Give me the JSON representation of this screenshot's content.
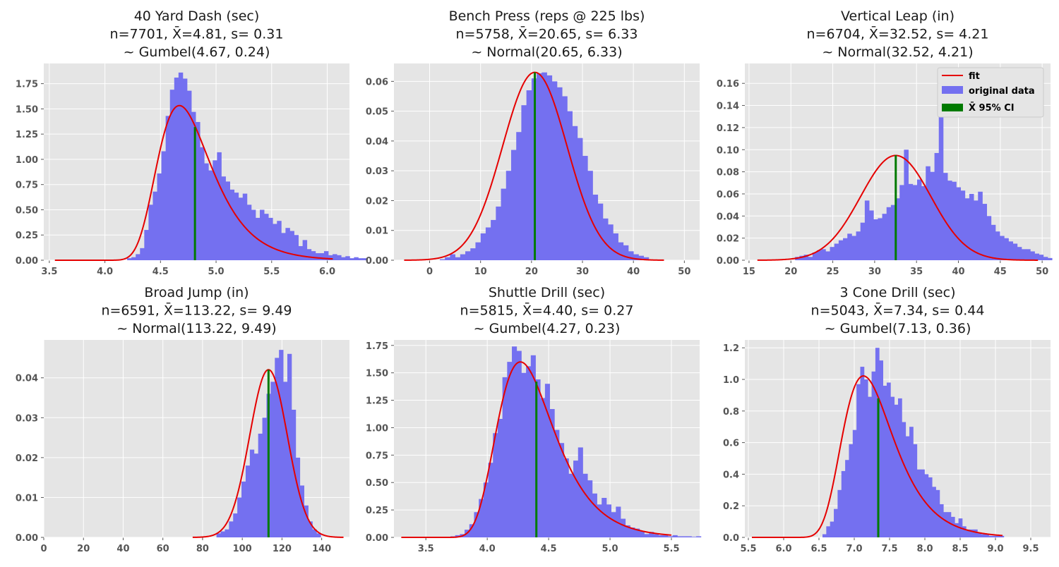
{
  "chart_data": [
    {
      "type": "bar",
      "title": [
        "40 Yard Dash (sec)",
        "n=7701, X̄=4.81, s= 0.31",
        "~ Gumbel(4.67, 0.24)"
      ],
      "xlim": [
        3.45,
        6.2
      ],
      "ylim": [
        0,
        1.95
      ],
      "xticks": [
        3.5,
        4.0,
        4.5,
        5.0,
        5.5,
        6.0
      ],
      "xtick_decimals": 1,
      "yticks": [
        0,
        0.25,
        0.5,
        0.75,
        1.0,
        1.25,
        1.5,
        1.75
      ],
      "ytick_decimals": 2,
      "fit": {
        "dist": "gumbel",
        "mu": 4.67,
        "beta": 0.24,
        "x": [
          3.55,
          6.05
        ]
      },
      "ci": {
        "mean": 4.81,
        "height": 1.32
      },
      "bins": {
        "start": 4.2,
        "width": 0.0385,
        "values": [
          0.02,
          0.03,
          0.06,
          0.12,
          0.3,
          0.55,
          0.68,
          0.86,
          1.08,
          1.43,
          1.69,
          1.81,
          1.86,
          1.8,
          1.68,
          1.47,
          1.37,
          1.12,
          0.96,
          0.89,
          0.99,
          1.07,
          0.83,
          0.78,
          0.7,
          0.67,
          0.62,
          0.66,
          0.55,
          0.5,
          0.42,
          0.5,
          0.46,
          0.42,
          0.36,
          0.39,
          0.27,
          0.32,
          0.29,
          0.25,
          0.14,
          0.2,
          0.11,
          0.09,
          0.07,
          0.07,
          0.09,
          0.05,
          0.06,
          0.05,
          0.03,
          0.04,
          0.02,
          0.03,
          0.02,
          0.02
        ]
      }
    },
    {
      "type": "bar",
      "title": [
        "Bench Press (reps @ 225 lbs)",
        "n=5758, X̄=20.65, s= 6.33",
        "~ Normal(20.65, 6.33)"
      ],
      "xlim": [
        -7,
        53
      ],
      "ylim": [
        0,
        0.066
      ],
      "xticks": [
        0,
        10,
        20,
        30,
        40,
        50
      ],
      "xtick_decimals": 0,
      "yticks": [
        0,
        0.01,
        0.02,
        0.03,
        0.04,
        0.05,
        0.06
      ],
      "ytick_decimals": 2,
      "fit": {
        "dist": "normal",
        "mu": 20.65,
        "sigma": 6.33,
        "x": [
          -5,
          46
        ]
      },
      "ci": {
        "mean": 20.65,
        "height": 0.063
      },
      "bins": {
        "start": 2,
        "width": 1,
        "values": [
          0.0003,
          0.001,
          0.002,
          0.001,
          0.002,
          0.003,
          0.004,
          0.006,
          0.009,
          0.011,
          0.0135,
          0.018,
          0.024,
          0.03,
          0.037,
          0.043,
          0.052,
          0.057,
          0.061,
          0.0627,
          0.063,
          0.062,
          0.06,
          0.058,
          0.055,
          0.05,
          0.045,
          0.041,
          0.035,
          0.03,
          0.022,
          0.019,
          0.014,
          0.012,
          0.009,
          0.006,
          0.005,
          0.003,
          0.002,
          0.0015,
          0.001
        ]
      }
    },
    {
      "type": "bar",
      "title": [
        "Vertical Leap (in)",
        "n=6704, X̄=32.52, s= 4.21",
        "~ Normal(32.52, 4.21)"
      ],
      "xlim": [
        14.5,
        51
      ],
      "ylim": [
        0,
        0.178
      ],
      "xticks": [
        15,
        20,
        25,
        30,
        35,
        40,
        45,
        50
      ],
      "xtick_decimals": 0,
      "yticks": [
        0,
        0.02,
        0.04,
        0.06,
        0.08,
        0.1,
        0.12,
        0.14,
        0.16
      ],
      "ytick_decimals": 2,
      "fit": {
        "dist": "normal",
        "mu": 32.52,
        "sigma": 4.21,
        "x": [
          16,
          49.5
        ]
      },
      "ci": {
        "mean": 32.52,
        "height": 0.095
      },
      "bins": {
        "start": 20.5,
        "width": 0.52,
        "values": [
          0.003,
          0.004,
          0.005,
          0.003,
          0.007,
          0.009,
          0.01,
          0.008,
          0.012,
          0.015,
          0.018,
          0.02,
          0.024,
          0.022,
          0.026,
          0.034,
          0.054,
          0.045,
          0.037,
          0.038,
          0.042,
          0.048,
          0.05,
          0.056,
          0.068,
          0.1,
          0.069,
          0.068,
          0.073,
          0.067,
          0.085,
          0.08,
          0.097,
          0.17,
          0.079,
          0.072,
          0.071,
          0.066,
          0.063,
          0.056,
          0.06,
          0.054,
          0.062,
          0.051,
          0.04,
          0.032,
          0.026,
          0.022,
          0.02,
          0.017,
          0.015,
          0.012,
          0.01,
          0.01,
          0.008,
          0.006,
          0.005,
          0.003,
          0.002
        ]
      }
    },
    {
      "type": "bar",
      "title": [
        "Broad Jump (in)",
        "n=6591, X̄=113.22, s= 9.49",
        "~ Normal(113.22, 9.49)"
      ],
      "xlim": [
        0,
        154
      ],
      "ylim": [
        0,
        0.0495
      ],
      "xticks": [
        0,
        20,
        40,
        60,
        80,
        100,
        120,
        140
      ],
      "xtick_decimals": 0,
      "yticks": [
        0,
        0.01,
        0.02,
        0.03,
        0.04
      ],
      "ytick_decimals": 2,
      "fit": {
        "dist": "normal",
        "mu": 113.22,
        "sigma": 9.49,
        "x": [
          75,
          151
        ]
      },
      "ci": {
        "mean": 113.22,
        "height": 0.042
      },
      "bins": {
        "start": 87,
        "width": 2.1,
        "values": [
          0.001,
          0.0015,
          0.002,
          0.004,
          0.006,
          0.01,
          0.014,
          0.018,
          0.022,
          0.021,
          0.026,
          0.03,
          0.036,
          0.039,
          0.045,
          0.047,
          0.039,
          0.046,
          0.032,
          0.02,
          0.013,
          0.008,
          0.004,
          0.002,
          0.001
        ]
      }
    },
    {
      "type": "bar",
      "title": [
        "Shuttle Drill (sec)",
        "n=5815, X̄=4.40, s= 0.27",
        "~ Gumbel(4.27, 0.23)"
      ],
      "xlim": [
        3.24,
        5.73
      ],
      "ylim": [
        0,
        1.8
      ],
      "xticks": [
        3.5,
        4.0,
        4.5,
        5.0,
        5.5
      ],
      "xtick_decimals": 1,
      "yticks": [
        0,
        0.25,
        0.5,
        0.75,
        1.0,
        1.25,
        1.5,
        1.75
      ],
      "ytick_decimals": 2,
      "fit": {
        "dist": "gumbel",
        "mu": 4.27,
        "beta": 0.23,
        "x": [
          3.3,
          5.5
        ]
      },
      "ci": {
        "mean": 4.4,
        "height": 1.42
      },
      "bins": {
        "start": 3.7,
        "width": 0.0385,
        "values": [
          0.01,
          0.02,
          0.03,
          0.07,
          0.12,
          0.23,
          0.35,
          0.5,
          0.68,
          0.95,
          1.08,
          1.46,
          1.6,
          1.74,
          1.7,
          1.5,
          1.56,
          1.66,
          1.44,
          1.27,
          1.4,
          1.17,
          0.98,
          0.86,
          0.72,
          0.58,
          0.7,
          0.82,
          0.58,
          0.52,
          0.4,
          0.3,
          0.36,
          0.3,
          0.23,
          0.28,
          0.17,
          0.11,
          0.09,
          0.08,
          0.06,
          0.03,
          0.05,
          0.03,
          0.02,
          0.02,
          0.01,
          0.02,
          0.01,
          0.01,
          0.01,
          0.005,
          0.01
        ]
      }
    },
    {
      "type": "bar",
      "title": [
        "3 Cone Drill (sec)",
        "n=5043, X̄=7.34, s= 0.44",
        "~ Gumbel(7.13, 0.36)"
      ],
      "xlim": [
        5.45,
        9.78
      ],
      "ylim": [
        0,
        1.25
      ],
      "xticks": [
        5.5,
        6.0,
        6.5,
        7.0,
        7.5,
        8.0,
        8.5,
        9.0,
        9.5
      ],
      "xtick_decimals": 1,
      "yticks": [
        0,
        0.2,
        0.4,
        0.6,
        0.8,
        1.0,
        1.2
      ],
      "ytick_decimals": 1,
      "fit": {
        "dist": "gumbel",
        "mu": 7.13,
        "beta": 0.36,
        "x": [
          5.55,
          9.1
        ]
      },
      "ci": {
        "mean": 7.34,
        "height": 0.88
      },
      "bins": {
        "start": 6.55,
        "width": 0.0535,
        "values": [
          0.02,
          0.07,
          0.1,
          0.18,
          0.3,
          0.42,
          0.49,
          0.59,
          0.68,
          0.97,
          1.08,
          1.0,
          0.89,
          1.05,
          1.2,
          1.12,
          0.96,
          0.98,
          0.89,
          0.84,
          0.88,
          0.73,
          0.64,
          0.7,
          0.59,
          0.43,
          0.43,
          0.4,
          0.38,
          0.32,
          0.3,
          0.21,
          0.16,
          0.16,
          0.13,
          0.09,
          0.12,
          0.07,
          0.05,
          0.05,
          0.05,
          0.03,
          0.02,
          0.02,
          0.01,
          0.01,
          0.01,
          0.01
        ]
      }
    }
  ],
  "legend": {
    "fit": "fit",
    "original_data": "original data",
    "ci": "X̄ 95% CI",
    "location": "upper right of Vertical Leap panel"
  },
  "colors": {
    "background": "#e5e5e5",
    "grid": "#ffffff",
    "bars": "#7470f0",
    "fit": "#e50000",
    "ci": "#007a00"
  }
}
